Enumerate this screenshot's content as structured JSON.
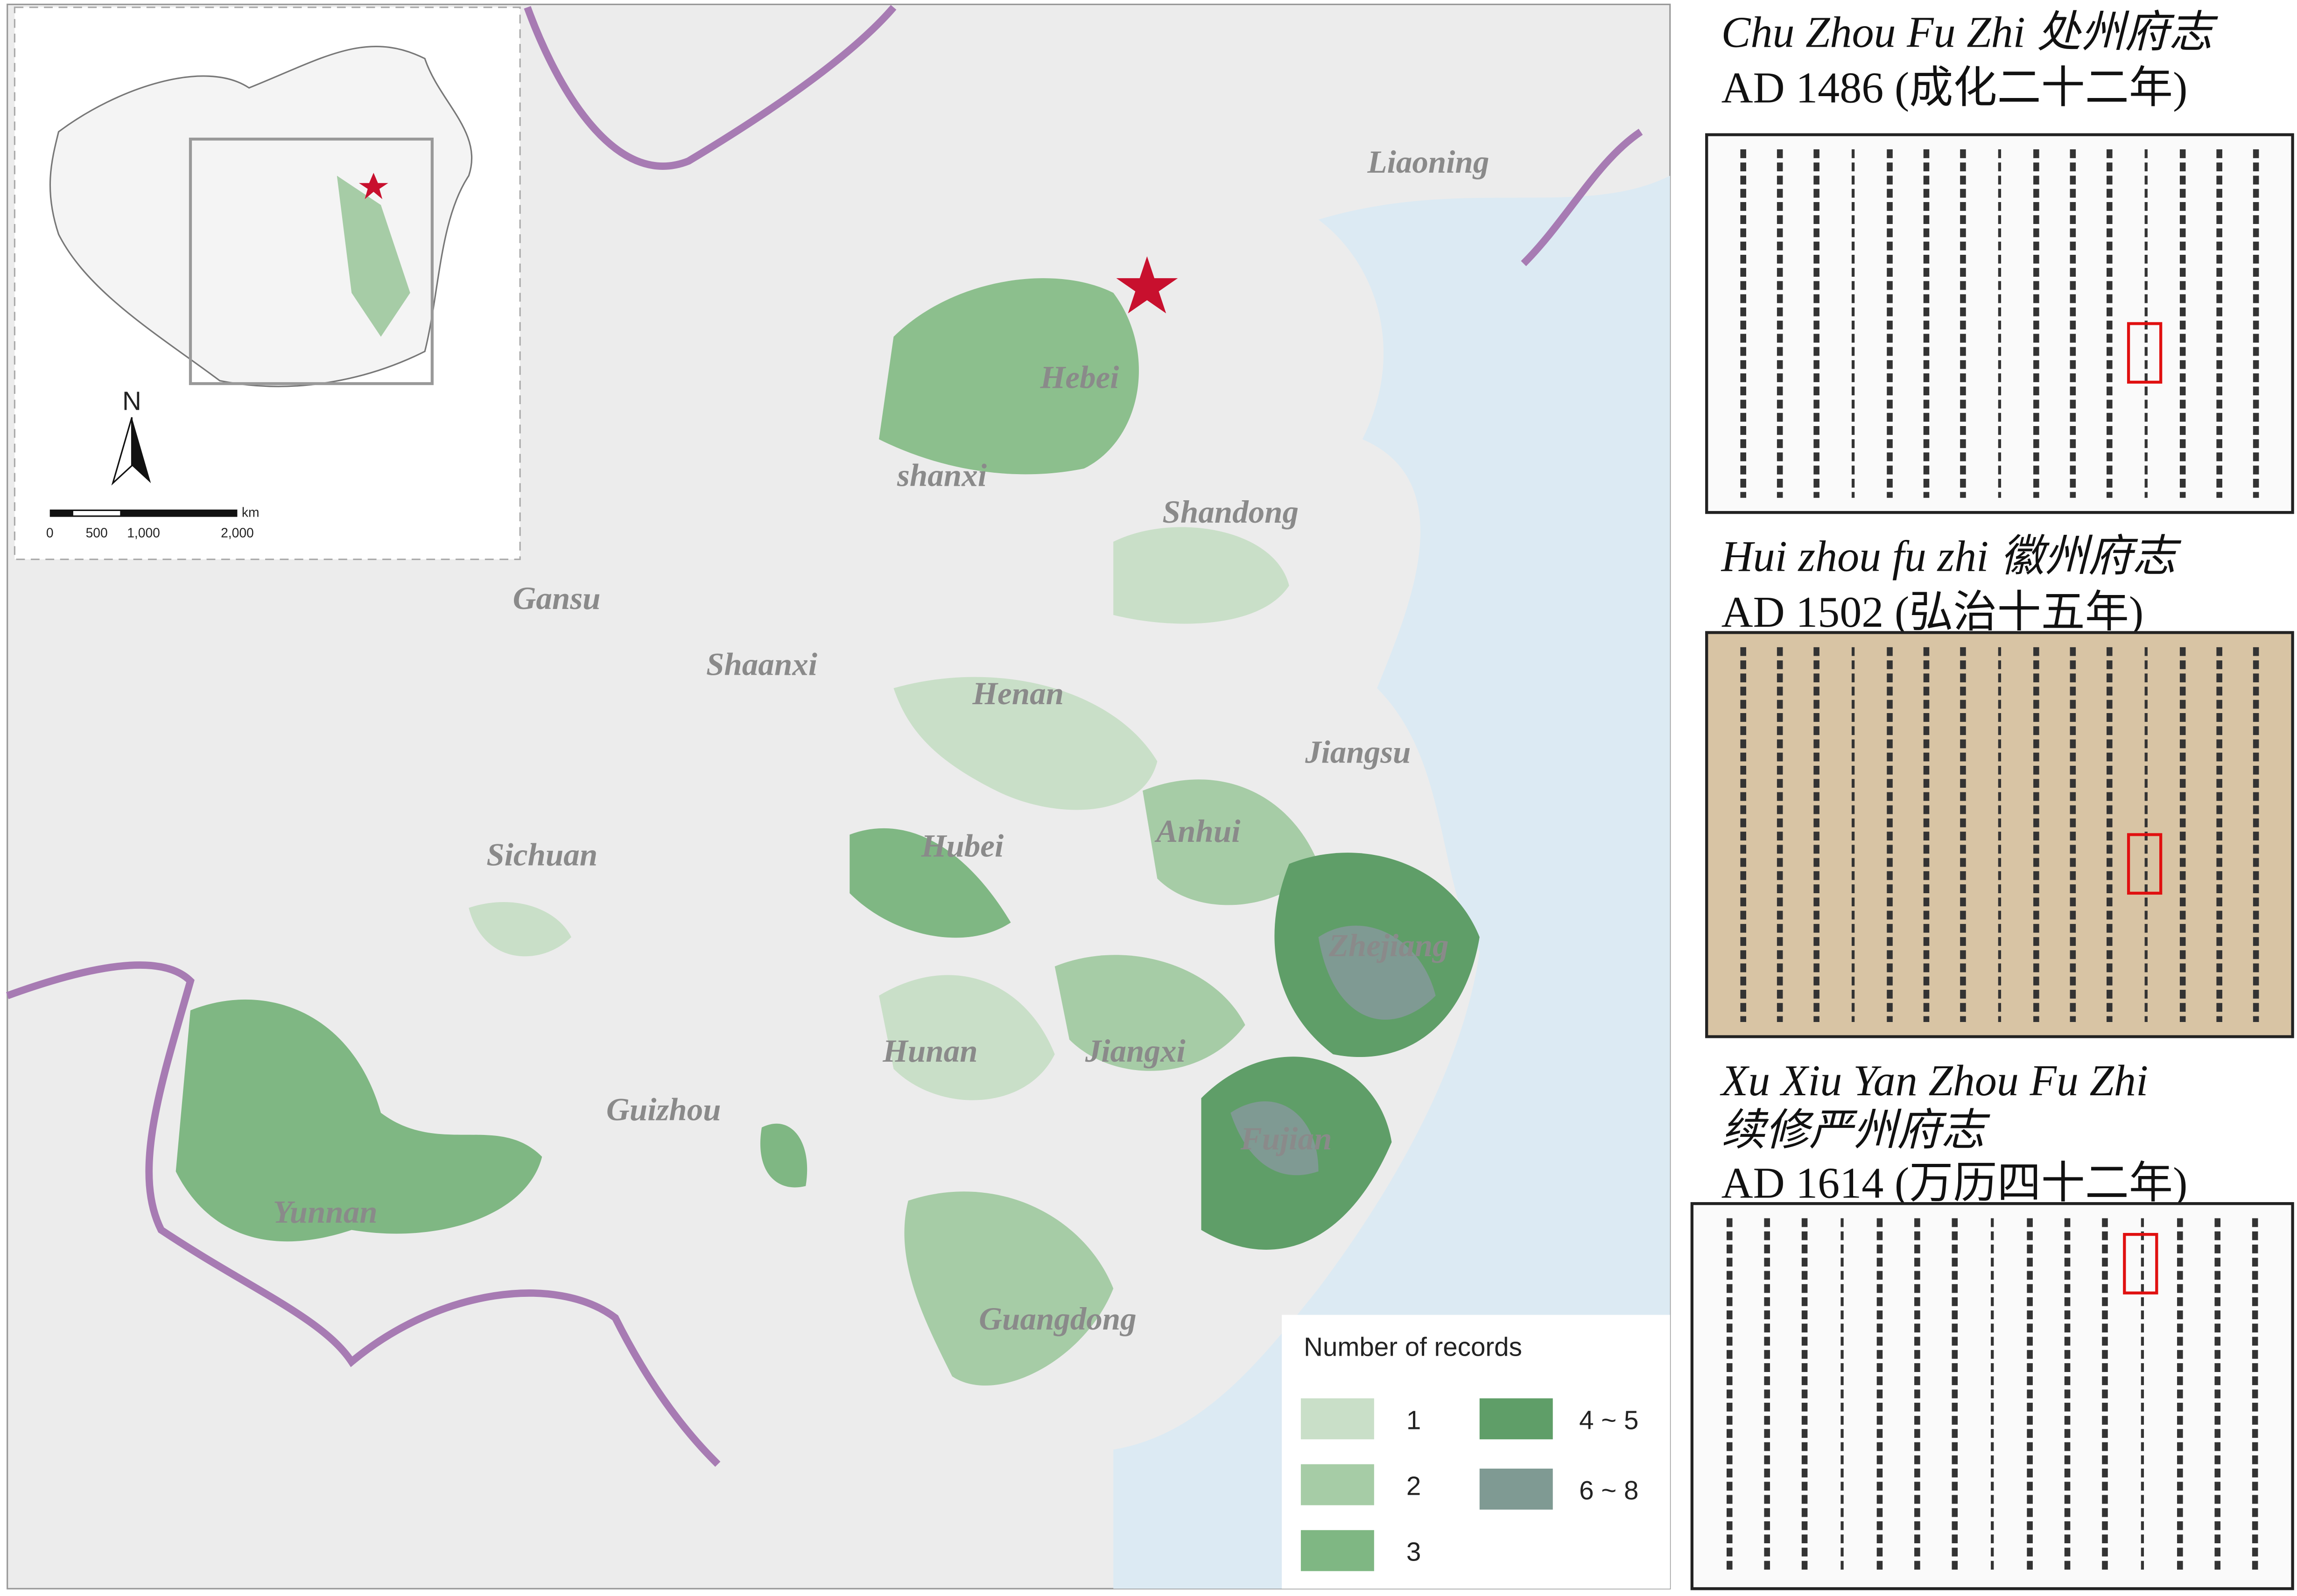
{
  "map": {
    "provinces": [
      "Liaoning",
      "Hebei",
      "shanxi",
      "Shandong",
      "Gansu",
      "Shaanxi",
      "Henan",
      "Jiangsu",
      "Sichuan",
      "Hubei",
      "Anhui",
      "Zhejiang",
      "Hunan",
      "Jiangxi",
      "Guizhou",
      "Fujian",
      "Yunnan",
      "Guangdong"
    ],
    "legend": {
      "title": "Number of records",
      "items": [
        {
          "label": "1",
          "color": "#c9dfc8"
        },
        {
          "label": "2",
          "color": "#a6cca6"
        },
        {
          "label": "3",
          "color": "#7fb783"
        },
        {
          "label": "4 ~ 5",
          "color": "#5f9e68"
        },
        {
          "label": "6 ~ 8",
          "color": "#7f9a93"
        }
      ]
    },
    "inset": {
      "north": "N",
      "scale_unit": "km",
      "scale_labels": [
        "0",
        "500",
        "1,000",
        "2,000"
      ]
    }
  },
  "documents": [
    {
      "title_latin": "Chu Zhou Fu Zhi",
      "title_chinese": "处州府志",
      "date": "AD 1486 (成化二十二年)"
    },
    {
      "title_latin": "Hui zhou fu zhi",
      "title_chinese": "徽州府志",
      "date": "AD 1502 (弘治十五年)"
    },
    {
      "title_latin": "Xu Xiu Yan Zhou Fu Zhi",
      "title_chinese": "续修严州府志",
      "date": "AD 1614 (万历四十二年)"
    }
  ]
}
